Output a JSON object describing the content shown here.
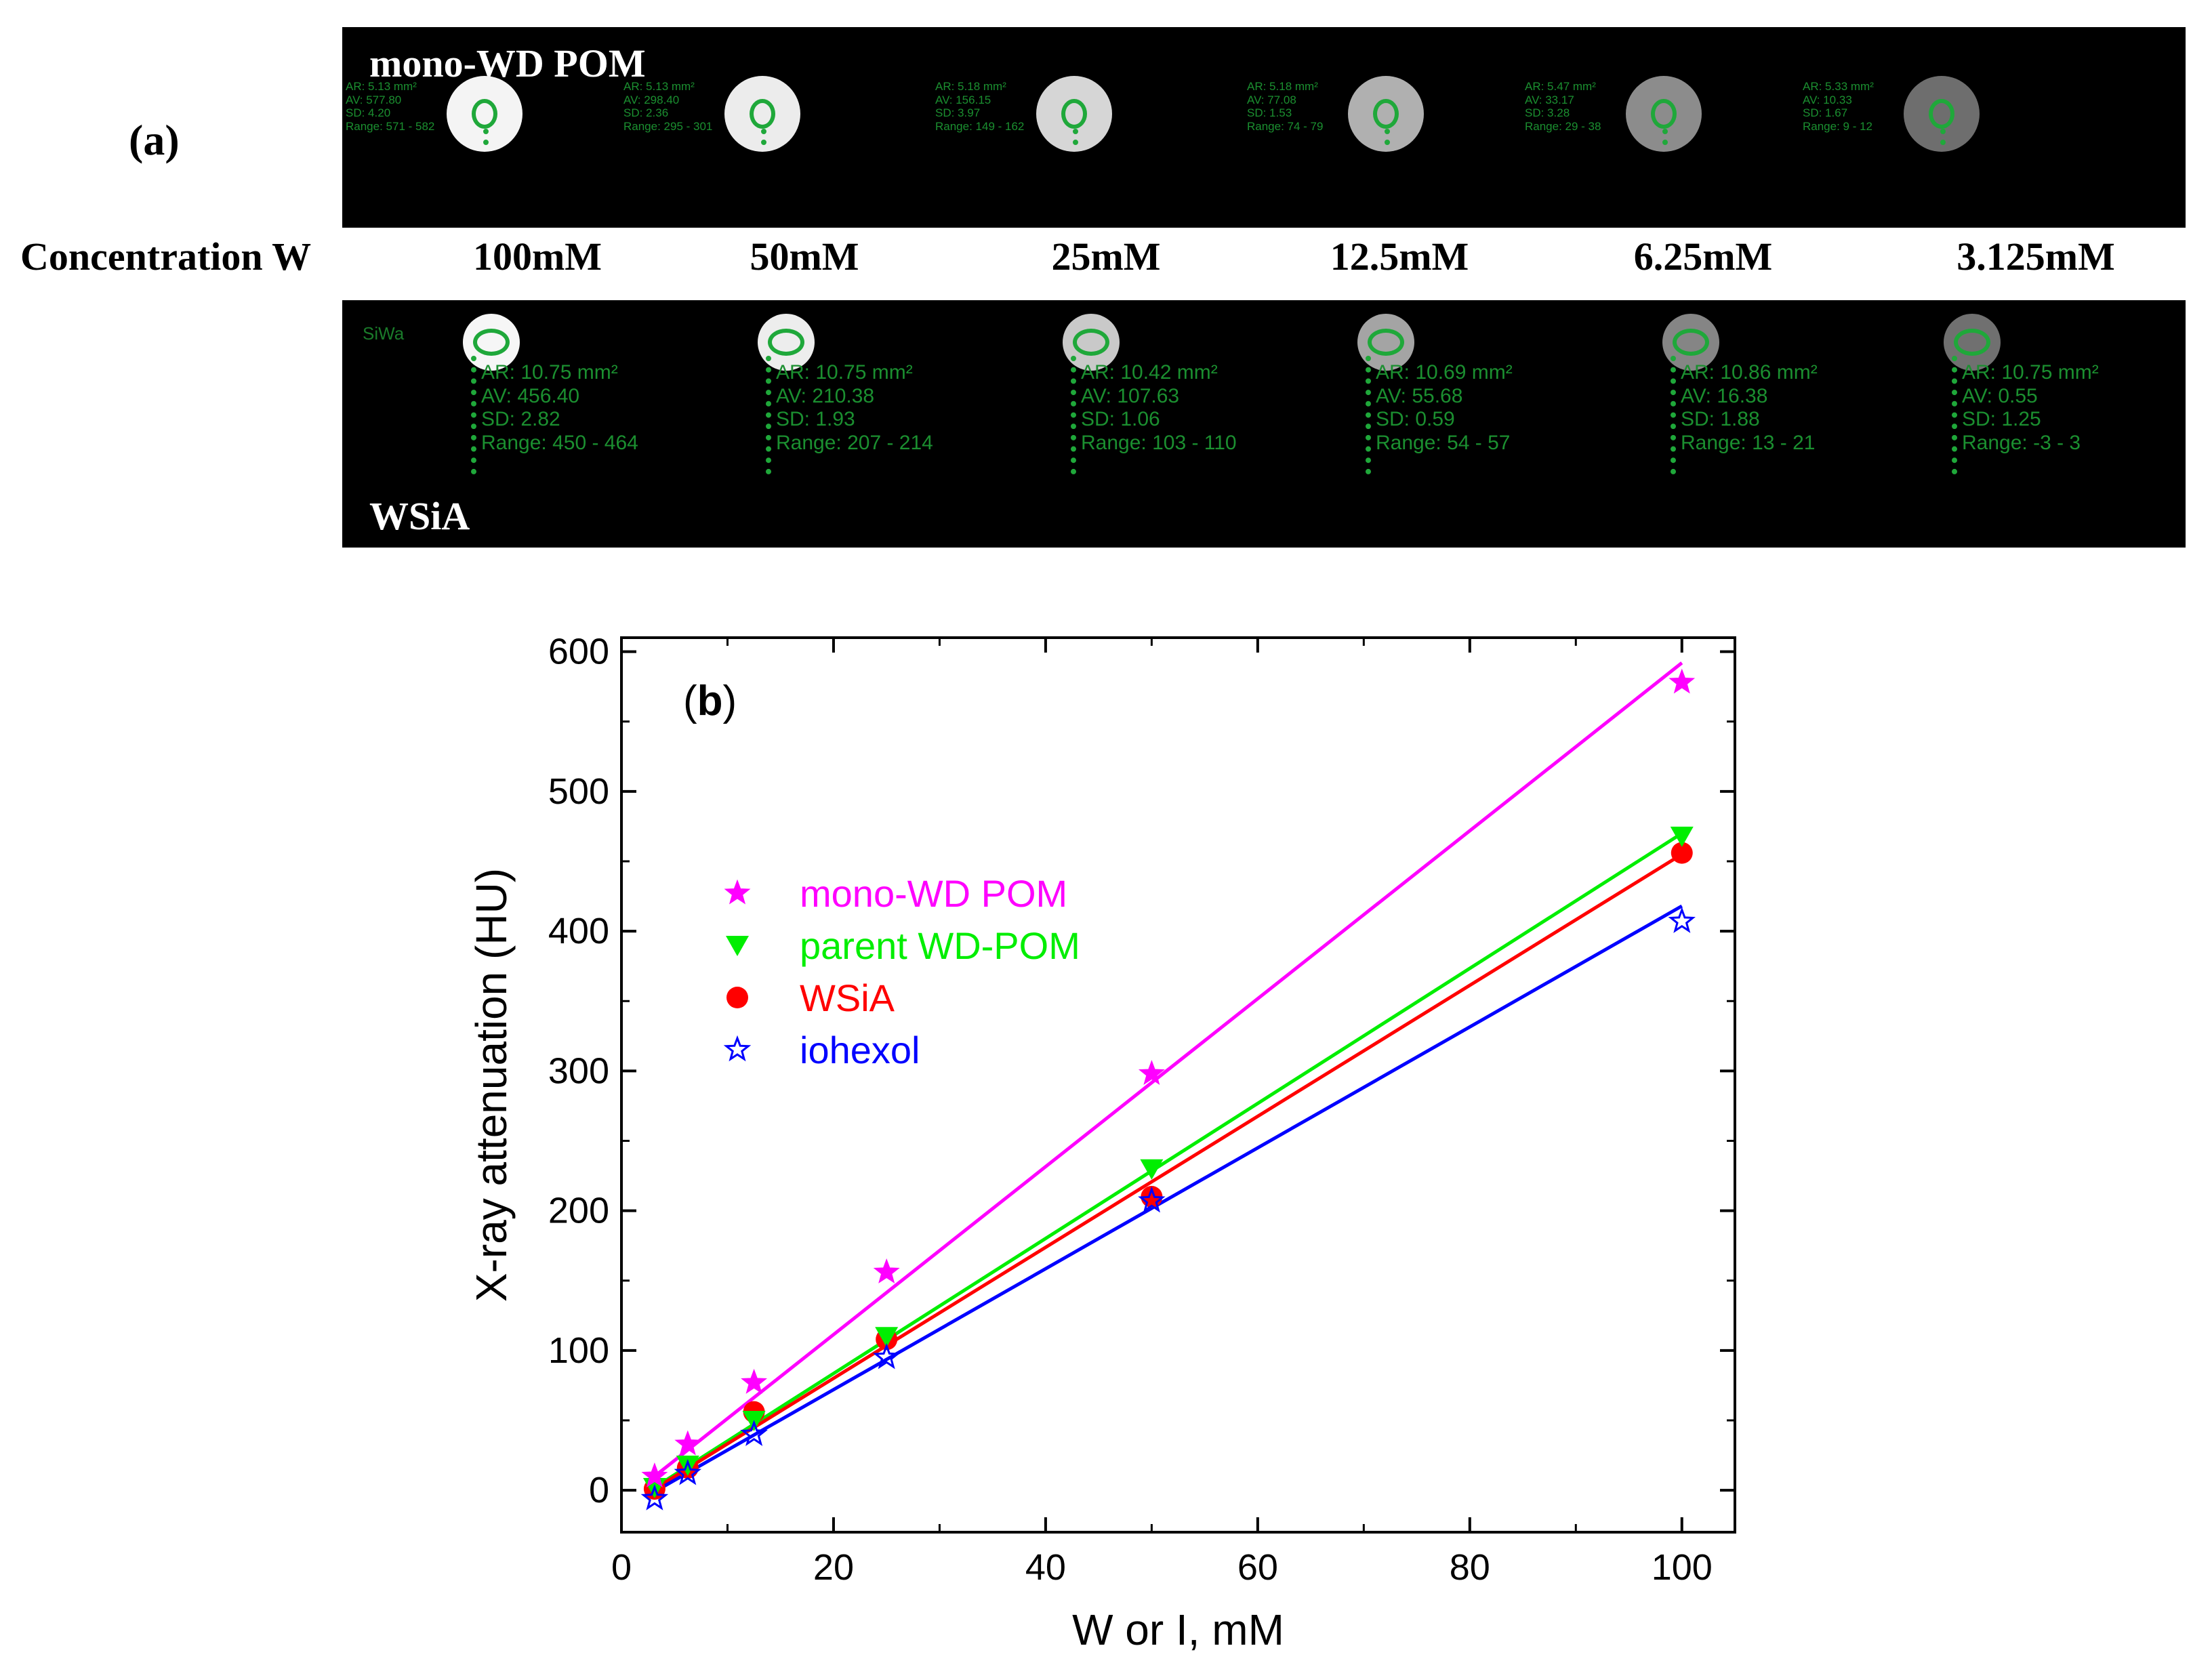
{
  "panel_a": {
    "label": "(a)",
    "top_strip_title": "mono-WD POM",
    "bottom_strip_title": "WSiA",
    "bottom_strip_corner_label": "SiWa",
    "concentration_header": "Concentration W",
    "concentrations": [
      "100mM",
      "50mM",
      "25mM",
      "12.5mM",
      "6.25mM",
      "3.125mM"
    ],
    "top_rois": [
      {
        "ar": "AR: 5.13 mm²",
        "av": "AV: 577.80",
        "sd": "SD: 4.20",
        "range": "Range: 571 - 582",
        "gray": "#f4f4f4"
      },
      {
        "ar": "AR: 5.13 mm²",
        "av": "AV: 298.40",
        "sd": "SD: 2.36",
        "range": "Range: 295 - 301",
        "gray": "#ececec"
      },
      {
        "ar": "AR: 5.18 mm²",
        "av": "AV: 156.15",
        "sd": "SD: 3.97",
        "range": "Range: 149 - 162",
        "gray": "#d6d6d6"
      },
      {
        "ar": "AR: 5.18 mm²",
        "av": "AV: 77.08",
        "sd": "SD: 1.53",
        "range": "Range: 74 - 79",
        "gray": "#b0b0b0"
      },
      {
        "ar": "AR: 5.47 mm²",
        "av": "AV: 33.17",
        "sd": "SD: 3.28",
        "range": "Range: 29 - 38",
        "gray": "#8c8c8c"
      },
      {
        "ar": "AR: 5.33 mm²",
        "av": "AV: 10.33",
        "sd": "SD: 1.67",
        "range": "Range: 9 - 12",
        "gray": "#6e6e6e"
      }
    ],
    "bottom_rois": [
      {
        "ar": "AR: 10.75 mm²",
        "av": "AV: 456.40",
        "sd": "SD: 2.82",
        "range": "Range: 450 - 464",
        "gray": "#f6f6f6"
      },
      {
        "ar": "AR: 10.75 mm²",
        "av": "AV: 210.38",
        "sd": "SD: 1.93",
        "range": "Range: 207 - 214",
        "gray": "#ededed"
      },
      {
        "ar": "AR: 10.42 mm²",
        "av": "AV: 107.63",
        "sd": "SD: 1.06",
        "range": "Range: 103 - 110",
        "gray": "#c9c9c9"
      },
      {
        "ar": "AR: 10.69 mm²",
        "av": "AV: 55.68",
        "sd": "SD: 0.59",
        "range": "Range: 54 - 57",
        "gray": "#a4a4a4"
      },
      {
        "ar": "AR: 10.86 mm²",
        "av": "AV: 16.38",
        "sd": "SD: 1.88",
        "range": "Range: 13 - 21",
        "gray": "#858585"
      },
      {
        "ar": "AR: 10.75 mm²",
        "av": "AV: 0.55",
        "sd": "SD: 1.25",
        "range": "Range: -3 - 3",
        "gray": "#707070"
      }
    ]
  },
  "chart_data": {
    "type": "scatter",
    "panel_label": "(b)",
    "xlabel": "W or I, mM",
    "ylabel": "X-ray attenuation (HU)",
    "xlim": [
      0,
      105
    ],
    "ylim": [
      -30,
      610
    ],
    "xticks": [
      0,
      20,
      40,
      60,
      80,
      100
    ],
    "yticks": [
      0,
      100,
      200,
      300,
      400,
      500,
      600
    ],
    "legend_position": "upper-left",
    "grid": false,
    "series": [
      {
        "name": "mono-WD POM",
        "color": "#ff00ff",
        "marker": "star-filled",
        "x": [
          3.125,
          6.25,
          12.5,
          25,
          50,
          100
        ],
        "y": [
          10,
          33,
          77,
          156,
          298,
          578
        ],
        "fit": {
          "x": [
            3.125,
            100
          ],
          "y": [
            10,
            592
          ]
        }
      },
      {
        "name": "parent WD-POM",
        "color": "#00ee00",
        "marker": "triangle-down",
        "x": [
          3.125,
          6.25,
          12.5,
          25,
          50,
          100
        ],
        "y": [
          2,
          18,
          50,
          110,
          230,
          468
        ],
        "fit": {
          "x": [
            3.125,
            100
          ],
          "y": [
            2,
            470
          ]
        }
      },
      {
        "name": "WSiA",
        "color": "#ff0000",
        "marker": "circle",
        "x": [
          3.125,
          6.25,
          12.5,
          25,
          50,
          100
        ],
        "y": [
          1,
          16,
          56,
          108,
          210,
          456
        ],
        "fit": {
          "x": [
            3.125,
            100
          ],
          "y": [
            1,
            455
          ]
        }
      },
      {
        "name": "iohexol",
        "color": "#0000ff",
        "marker": "star-open",
        "x": [
          3.125,
          6.25,
          12.5,
          25,
          50,
          100
        ],
        "y": [
          -6,
          12,
          40,
          95,
          207,
          407
        ],
        "fit": {
          "x": [
            3.125,
            100
          ],
          "y": [
            -1,
            418
          ]
        }
      }
    ]
  }
}
